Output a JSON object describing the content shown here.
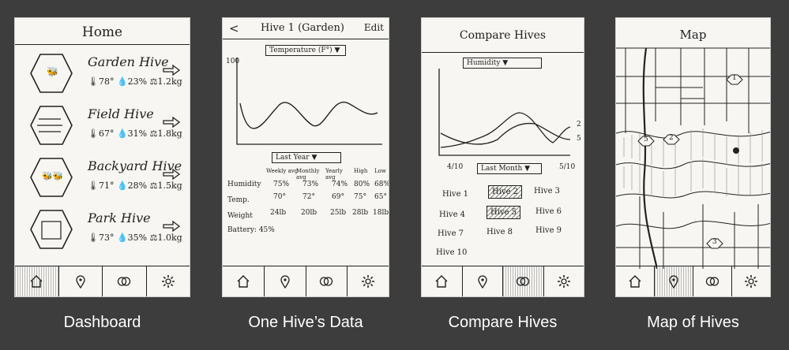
{
  "captions": [
    "Dashboard",
    "One Hive’s Data",
    "Compare Hives",
    "Map of Hives"
  ],
  "dashboard": {
    "title": "Home",
    "hives": [
      {
        "name": "Garden Hive",
        "stats": "🌡78°  💧23%  ⚖1.2kg"
      },
      {
        "name": "Field Hive",
        "stats": "🌡67°  💧31%  ⚖1.8kg"
      },
      {
        "name": "Backyard Hive",
        "stats": "🌡71°  💧28%  ⚖1.5kg"
      },
      {
        "name": "Park Hive",
        "stats": "🌡73°  💧35%  ⚖1.0kg"
      }
    ]
  },
  "hive_data": {
    "back": "<",
    "title": "Hive 1 (Garden)",
    "edit": "Edit",
    "metric_dropdown": "Temperature (F°) ▼",
    "y_max_label": "100",
    "range_dropdown": "Last Year ▼",
    "col_headers": [
      "Weekly avg",
      "Monthly avg",
      "Yearly avg",
      "High",
      "Low"
    ],
    "rows": [
      {
        "label": "Humidity",
        "values": [
          "75%",
          "73%",
          "74%",
          "80%",
          "68%"
        ]
      },
      {
        "label": "Temp.",
        "values": [
          "70°",
          "72°",
          "69°",
          "75°",
          "65°"
        ]
      },
      {
        "label": "Weight",
        "values": [
          "24lb",
          "20lb",
          "25lb",
          "28lb",
          "18lb"
        ]
      }
    ],
    "battery": "Battery: 45%"
  },
  "compare": {
    "title": "Compare Hives",
    "metric_dropdown": "Humidity ▼",
    "x_start": "4/10",
    "x_end": "5/10",
    "line_labels": [
      "2",
      "5"
    ],
    "range_dropdown": "Last Month ▼",
    "hives": [
      "Hive 1",
      "Hive 2",
      "Hive 3",
      "Hive 4",
      "Hive 5",
      "Hive 6",
      "Hive 7",
      "Hive 8",
      "Hive 9",
      "Hive 10"
    ]
  },
  "map": {
    "title": "Map",
    "markers": [
      "1",
      "2",
      "3",
      "5"
    ]
  },
  "colors": {
    "background": "#3d3d3d",
    "paper": "#f7f6f2",
    "ink": "#222222",
    "caption": "#ffffff"
  }
}
